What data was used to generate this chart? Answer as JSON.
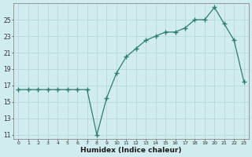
{
  "x": [
    0,
    1,
    2,
    3,
    4,
    5,
    6,
    7,
    8,
    9,
    10,
    11,
    12,
    13,
    14,
    15,
    16,
    17,
    18,
    19,
    20,
    21,
    22,
    23
  ],
  "y": [
    16.5,
    16.5,
    16.5,
    16.5,
    16.5,
    16.5,
    16.5,
    16.5,
    11.0,
    15.5,
    18.5,
    20.5,
    21.5,
    22.5,
    23.0,
    23.5,
    23.5,
    24.0,
    25.0,
    25.0,
    26.5,
    24.5,
    22.5,
    17.5
  ],
  "xlabel": "Humidex (Indice chaleur)",
  "xlim": [
    -0.5,
    23.5
  ],
  "ylim": [
    10.5,
    27
  ],
  "yticks": [
    11,
    13,
    15,
    17,
    19,
    21,
    23,
    25
  ],
  "xtick_labels": [
    "0",
    "1",
    "2",
    "3",
    "4",
    "5",
    "6",
    "7",
    "8",
    "9",
    "10",
    "11",
    "12",
    "13",
    "14",
    "15",
    "16",
    "17",
    "18",
    "19",
    "20",
    "21",
    "22",
    "23"
  ],
  "line_color": "#2e7d6e",
  "bg_color": "#d0ecee",
  "grid_color": "#b8d8da"
}
